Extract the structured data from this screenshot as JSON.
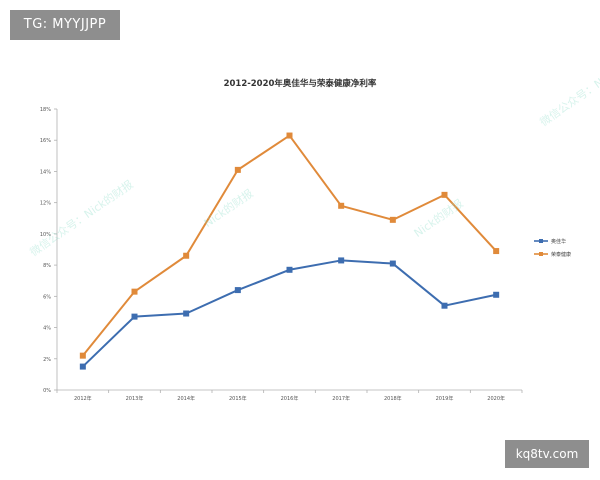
{
  "badges": {
    "top_left": "TG: MYYJJPP",
    "bottom_right": "kq8tv.com"
  },
  "watermarks": [
    "微信公众号：Nick的财报",
    "Nick的财报",
    "微信公众号：Nick的财报",
    "Nick的财报"
  ],
  "colors": {
    "series_1": "#3d6db0",
    "series_2": "#e08a3a",
    "axis": "#b0b0b0"
  },
  "chart_data": {
    "type": "line",
    "title": "2012-2020年奥佳华与荣泰健康净利率",
    "xlabel": "",
    "ylabel": "",
    "categories": [
      "2012年",
      "2013年",
      "2014年",
      "2015年",
      "2016年",
      "2017年",
      "2018年",
      "2019年",
      "2020年"
    ],
    "ylim": [
      0,
      18
    ],
    "yticks": [
      "0%",
      "2%",
      "4%",
      "6%",
      "8%",
      "10%",
      "12%",
      "14%",
      "16%",
      "18%"
    ],
    "series": [
      {
        "name": "奥佳华",
        "color": "#3d6db0",
        "values": [
          1.5,
          4.7,
          4.9,
          6.4,
          7.7,
          8.3,
          8.1,
          5.4,
          6.1
        ]
      },
      {
        "name": "荣泰健康",
        "color": "#e08a3a",
        "values": [
          2.2,
          6.3,
          8.6,
          14.1,
          16.3,
          11.8,
          10.9,
          12.5,
          8.9
        ]
      }
    ],
    "grid": false,
    "legend": "right"
  }
}
